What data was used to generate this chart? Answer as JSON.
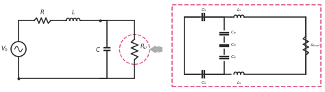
{
  "bg_color": "#ffffff",
  "line_color": "#2c2c2c",
  "pink_color": "#e05080",
  "arrow_fill": "#b0b0b0",
  "label_R": "R",
  "label_L": "L",
  "label_C": "C",
  "label_RL": "R_L",
  "label_V0": "V_0",
  "label_Cp": "C_p",
  "label_Cs": "C_s",
  "label_Ls": "L_s",
  "label_Rload": "R_{load}",
  "fig_width": 4.74,
  "fig_height": 1.35,
  "dpi": 100
}
